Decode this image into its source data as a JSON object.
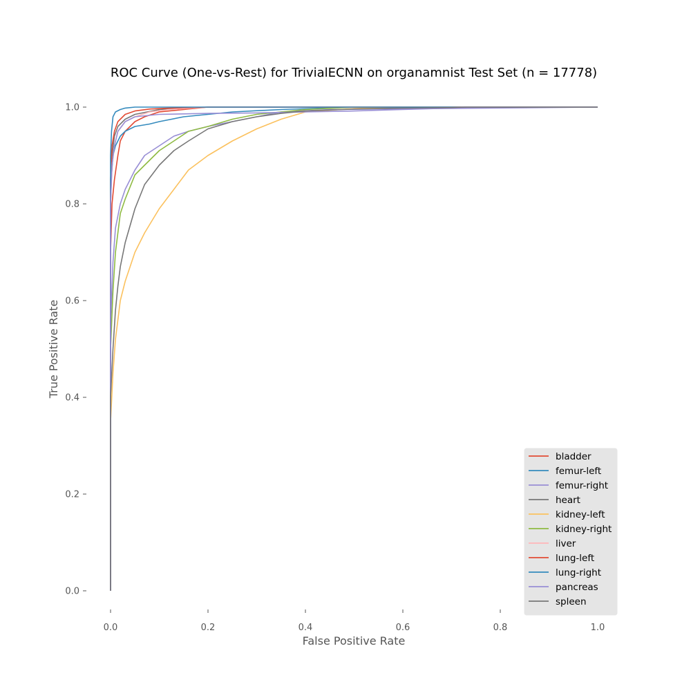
{
  "chart_data": {
    "type": "line",
    "title": "ROC Curve (One-vs-Rest) for TrivialECNN on organamnist Test Set (n = 17778)",
    "xlabel": "False Positive Rate",
    "ylabel": "True Positive Rate",
    "xlim": [
      0.0,
      1.0
    ],
    "ylim": [
      0.0,
      1.0
    ],
    "xticks": [
      "0.0",
      "0.2",
      "0.4",
      "0.6",
      "0.8",
      "1.0"
    ],
    "yticks": [
      "0.0",
      "0.2",
      "0.4",
      "0.6",
      "0.8",
      "1.0"
    ],
    "grid": false,
    "legend_position": "lower-right",
    "series": [
      {
        "name": "bladder",
        "color": "#E24A33",
        "x": [
          0.0,
          0.0,
          0.003,
          0.008,
          0.015,
          0.02,
          0.03,
          0.05,
          0.07,
          0.1,
          0.15,
          0.2,
          1.0
        ],
        "y": [
          0.0,
          0.7,
          0.8,
          0.85,
          0.9,
          0.93,
          0.95,
          0.97,
          0.98,
          0.99,
          0.995,
          1.0,
          1.0
        ]
      },
      {
        "name": "femur-left",
        "color": "#348ABD",
        "x": [
          0.0,
          0.0,
          0.002,
          0.005,
          0.01,
          0.02,
          0.03,
          0.05,
          0.08,
          0.1,
          0.15,
          0.25,
          0.35,
          0.5,
          1.0
        ],
        "y": [
          0.0,
          0.8,
          0.86,
          0.9,
          0.92,
          0.94,
          0.95,
          0.96,
          0.965,
          0.97,
          0.98,
          0.99,
          0.995,
          1.0,
          1.0
        ]
      },
      {
        "name": "femur-right",
        "color": "#988ED5",
        "x": [
          0.0,
          0.0,
          0.005,
          0.01,
          0.02,
          0.03,
          0.05,
          0.07,
          0.1,
          0.13,
          0.16,
          0.2,
          0.25,
          0.3,
          0.35,
          0.45,
          1.0
        ],
        "y": [
          0.0,
          0.55,
          0.68,
          0.75,
          0.8,
          0.83,
          0.87,
          0.9,
          0.92,
          0.94,
          0.95,
          0.96,
          0.97,
          0.98,
          0.99,
          0.995,
          1.0
        ]
      },
      {
        "name": "heart",
        "color": "#777777",
        "x": [
          0.0,
          0.0,
          0.003,
          0.008,
          0.015,
          0.03,
          0.05,
          0.1,
          0.2,
          1.0
        ],
        "y": [
          0.0,
          0.85,
          0.9,
          0.94,
          0.96,
          0.975,
          0.985,
          0.995,
          1.0,
          1.0
        ]
      },
      {
        "name": "kidney-left",
        "color": "#FBC15E",
        "x": [
          0.0,
          0.0,
          0.005,
          0.01,
          0.02,
          0.03,
          0.05,
          0.07,
          0.1,
          0.13,
          0.16,
          0.2,
          0.25,
          0.3,
          0.35,
          0.4,
          0.5,
          0.6,
          1.0
        ],
        "y": [
          0.0,
          0.35,
          0.45,
          0.52,
          0.6,
          0.64,
          0.7,
          0.74,
          0.79,
          0.83,
          0.87,
          0.9,
          0.93,
          0.955,
          0.975,
          0.99,
          0.997,
          1.0,
          1.0
        ]
      },
      {
        "name": "kidney-right",
        "color": "#8EBA42",
        "x": [
          0.0,
          0.0,
          0.005,
          0.01,
          0.015,
          0.02,
          0.03,
          0.05,
          0.07,
          0.1,
          0.13,
          0.16,
          0.2,
          0.25,
          0.3,
          0.35,
          0.4,
          0.5,
          1.0
        ],
        "y": [
          0.0,
          0.5,
          0.62,
          0.7,
          0.74,
          0.78,
          0.81,
          0.86,
          0.88,
          0.91,
          0.93,
          0.95,
          0.96,
          0.975,
          0.985,
          0.99,
          0.995,
          1.0,
          1.0
        ]
      },
      {
        "name": "liver",
        "color": "#FFB5B8",
        "x": [
          0.0,
          0.0,
          0.003,
          0.008,
          0.015,
          0.03,
          0.05,
          0.08,
          0.12,
          0.2,
          1.0
        ],
        "y": [
          0.0,
          0.8,
          0.88,
          0.92,
          0.95,
          0.97,
          0.98,
          0.99,
          0.995,
          1.0,
          1.0
        ]
      },
      {
        "name": "lung-left",
        "color": "#E24A33",
        "x": [
          0.0,
          0.0,
          0.003,
          0.008,
          0.015,
          0.03,
          0.05,
          0.08,
          0.12,
          0.2,
          1.0
        ],
        "y": [
          0.0,
          0.85,
          0.92,
          0.95,
          0.97,
          0.985,
          0.992,
          0.996,
          0.998,
          1.0,
          1.0
        ]
      },
      {
        "name": "lung-right",
        "color": "#348ABD",
        "x": [
          0.0,
          0.0,
          0.002,
          0.005,
          0.01,
          0.02,
          0.03,
          0.05,
          0.1,
          1.0
        ],
        "y": [
          0.0,
          0.9,
          0.95,
          0.98,
          0.99,
          0.995,
          0.998,
          1.0,
          1.0,
          1.0
        ]
      },
      {
        "name": "pancreas",
        "color": "#988ED5",
        "x": [
          0.0,
          0.0,
          0.003,
          0.008,
          0.015,
          0.03,
          0.05,
          0.1,
          0.2,
          0.3,
          0.4,
          0.5,
          0.6,
          0.7,
          0.72,
          1.0
        ],
        "y": [
          0.0,
          0.8,
          0.88,
          0.92,
          0.95,
          0.97,
          0.98,
          0.985,
          0.987,
          0.988,
          0.99,
          0.992,
          0.995,
          0.998,
          1.0,
          1.0
        ]
      },
      {
        "name": "spleen",
        "color": "#777777",
        "x": [
          0.0,
          0.0,
          0.005,
          0.01,
          0.015,
          0.02,
          0.03,
          0.05,
          0.07,
          0.1,
          0.13,
          0.16,
          0.2,
          0.25,
          0.3,
          0.35,
          0.4,
          0.5,
          0.6,
          0.7,
          0.73,
          1.0
        ],
        "y": [
          0.0,
          0.4,
          0.5,
          0.58,
          0.63,
          0.67,
          0.72,
          0.79,
          0.84,
          0.88,
          0.91,
          0.93,
          0.955,
          0.97,
          0.98,
          0.987,
          0.992,
          0.996,
          0.998,
          0.999,
          1.0,
          1.0
        ]
      }
    ]
  }
}
